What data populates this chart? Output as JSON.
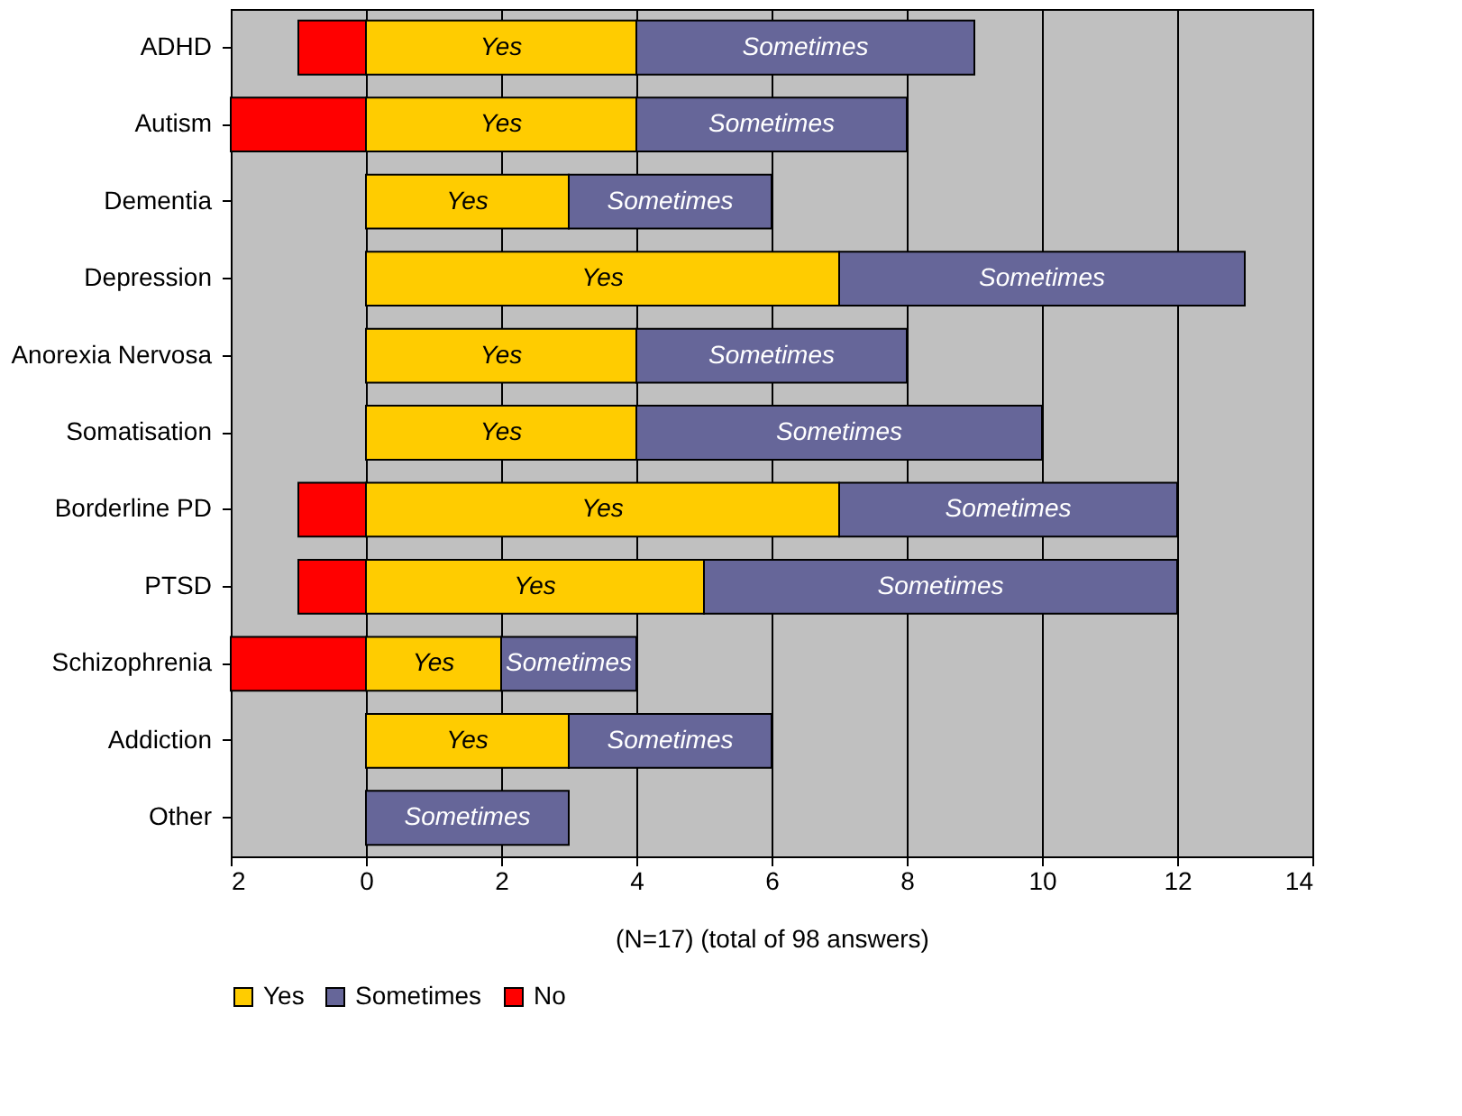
{
  "chart_data": {
    "type": "bar",
    "orientation": "horizontal",
    "stacked": true,
    "xlabel": "(N=17) (total of 98 answers)",
    "categories": [
      "ADHD",
      "Autism",
      "Dementia",
      "Depression",
      "Anorexia Nervosa",
      "Somatisation",
      "Borderline PD",
      "PTSD",
      "Schizophrenia",
      "Addiction",
      "Other"
    ],
    "series": [
      {
        "name": "Yes",
        "color": "#ffcc00",
        "values": [
          4,
          4,
          3,
          7,
          4,
          4,
          7,
          5,
          2,
          3,
          null
        ]
      },
      {
        "name": "Sometimes",
        "color": "#666699",
        "values": [
          5,
          4,
          3,
          6,
          4,
          6,
          5,
          7,
          2,
          3,
          3
        ]
      },
      {
        "name": "No",
        "color": "#ff0000",
        "values": [
          -1,
          -2,
          null,
          null,
          null,
          null,
          -1,
          -1,
          -2,
          null,
          null
        ]
      }
    ],
    "xlim": [
      -2,
      14
    ],
    "xticks": [
      {
        "value": -2,
        "label": "2"
      },
      0,
      2,
      4,
      6,
      8,
      10,
      12,
      14
    ],
    "grid": "x",
    "legend": "bottom",
    "annotations": [
      {
        "text": "Yes",
        "x": 2,
        "y": "ADHD"
      },
      {
        "text": "Sometimes",
        "x": 6.5,
        "y": "ADHD"
      },
      {
        "text": "Yes",
        "x": 2,
        "y": "Autism"
      },
      {
        "text": "Sometimes",
        "x": 6,
        "y": "Autism"
      },
      {
        "text": "Yes",
        "x": 1.5,
        "y": "Dementia"
      },
      {
        "text": "Sometimes",
        "x": 4.5,
        "y": "Dementia"
      },
      {
        "text": "Yes",
        "x": 3.5,
        "y": "Depression"
      },
      {
        "text": "Sometimes",
        "x": 10,
        "y": "Depression"
      },
      {
        "text": "Yes",
        "x": 2,
        "y": "Anorexia Nervosa"
      },
      {
        "text": "Sometimes",
        "x": 6,
        "y": "Anorexia Nervosa"
      },
      {
        "text": "Yes",
        "x": 2,
        "y": "Somatisation"
      },
      {
        "text": "Sometimes",
        "x": 7,
        "y": "Somatisation"
      },
      {
        "text": "Yes",
        "x": 3.5,
        "y": "Borderline PD"
      },
      {
        "text": "Sometimes",
        "x": 9.5,
        "y": "Borderline PD"
      },
      {
        "text": "Yes",
        "x": 2.5,
        "y": "PTSD"
      },
      {
        "text": "Sometimes",
        "x": 8.5,
        "y": "PTSD"
      },
      {
        "text": "Yes",
        "x": 1,
        "y": "Schizophrenia"
      },
      {
        "text": "Sometimes",
        "x": 3,
        "y": "Schizophrenia"
      },
      {
        "text": "Yes",
        "x": 1.5,
        "y": "Addiction"
      },
      {
        "text": "Sometimes",
        "x": 4.5,
        "y": "Addiction"
      },
      {
        "text": "Sometimes",
        "x": 1.5,
        "y": "Other"
      }
    ]
  }
}
